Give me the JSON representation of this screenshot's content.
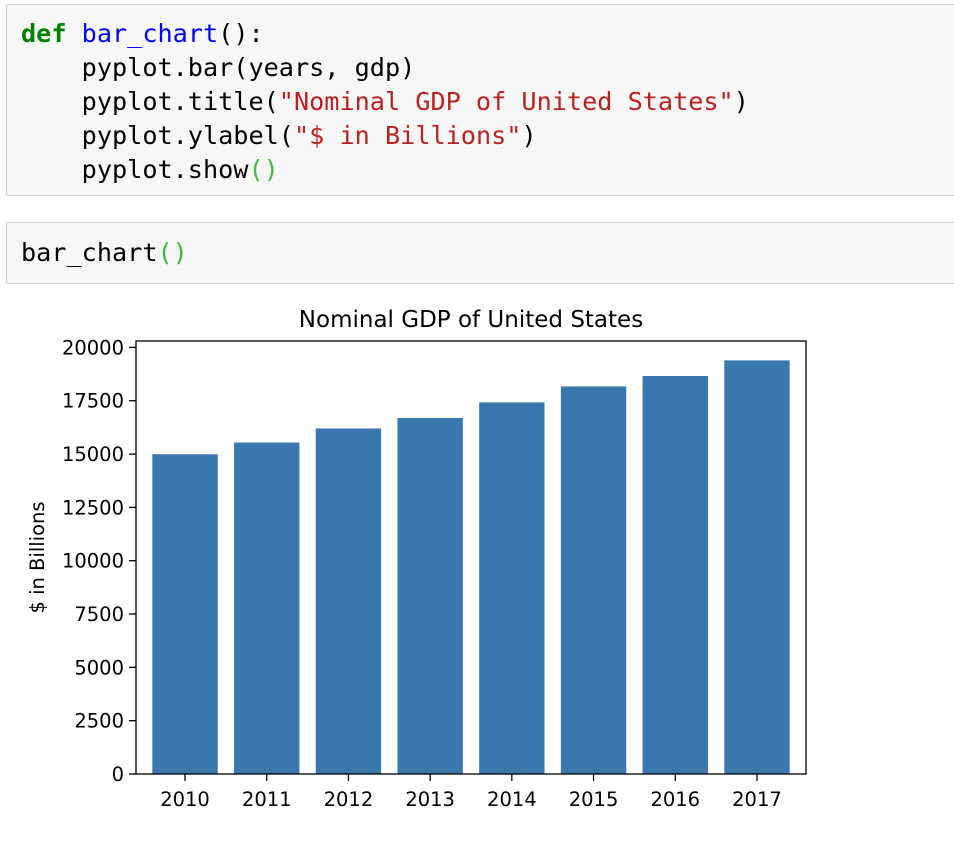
{
  "cells": [
    {
      "lines": [
        {
          "tokens": [
            {
              "t": "def",
              "c": "kw"
            },
            {
              "t": " ",
              "c": ""
            },
            {
              "t": "bar_chart",
              "c": "fn"
            },
            {
              "t": "():",
              "c": ""
            }
          ]
        },
        {
          "tokens": [
            {
              "t": "    pyplot.bar(years, gdp)",
              "c": ""
            }
          ]
        },
        {
          "tokens": [
            {
              "t": "    pyplot.title(",
              "c": ""
            },
            {
              "t": "\"Nominal GDP of United States\"",
              "c": "str"
            },
            {
              "t": ")",
              "c": ""
            }
          ]
        },
        {
          "tokens": [
            {
              "t": "    pyplot.ylabel(",
              "c": ""
            },
            {
              "t": "\"$ in Billions\"",
              "c": "str"
            },
            {
              "t": ")",
              "c": ""
            }
          ]
        },
        {
          "tokens": [
            {
              "t": "    pyplot.show",
              "c": ""
            },
            {
              "t": "()",
              "c": "par"
            }
          ]
        }
      ]
    },
    {
      "lines": [
        {
          "tokens": [
            {
              "t": "bar_chart",
              "c": ""
            },
            {
              "t": "()",
              "c": "par"
            }
          ]
        }
      ]
    }
  ],
  "colors": {
    "bar": "#3a77ae",
    "keyword": "#008000",
    "function_name": "#0000ff",
    "string": "#ba2121",
    "paren_call": "#3fba3f"
  },
  "chart_data": {
    "type": "bar",
    "title": "Nominal GDP of United States",
    "xlabel": "",
    "ylabel": "$ in Billions",
    "categories": [
      "2010",
      "2011",
      "2012",
      "2013",
      "2014",
      "2015",
      "2016",
      "2017"
    ],
    "values": [
      14990,
      15540,
      16200,
      16690,
      17420,
      18170,
      18660,
      19390
    ],
    "ylim": [
      0,
      20300
    ],
    "yticks": [
      0,
      2500,
      5000,
      7500,
      10000,
      12500,
      15000,
      17500,
      20000
    ],
    "grid": false
  }
}
